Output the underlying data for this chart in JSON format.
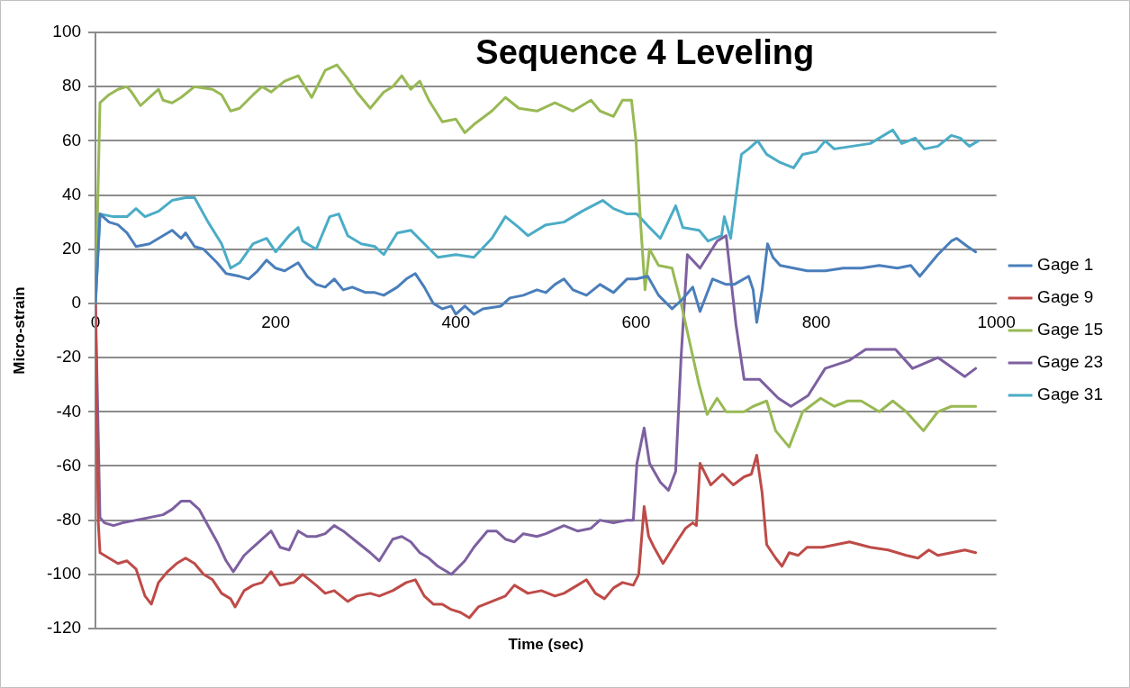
{
  "chart_data": {
    "type": "line",
    "title": "Sequence 4 Leveling",
    "xlabel": "Time (sec)",
    "ylabel": "Micro-strain",
    "xlim": [
      0,
      1000
    ],
    "xticks": [
      0,
      200,
      400,
      600,
      800,
      1000
    ],
    "ylim": [
      -120,
      100
    ],
    "yticks": [
      -120,
      -100,
      -80,
      -60,
      -40,
      -20,
      0,
      20,
      40,
      60,
      80,
      100
    ],
    "grid": "y",
    "legend": "right",
    "marker": "none",
    "line_style": "solid",
    "series": [
      {
        "name": "Gage 1",
        "color": "#4a7ebb",
        "x": [
          0,
          5,
          15,
          25,
          35,
          45,
          60,
          75,
          85,
          95,
          100,
          110,
          120,
          135,
          145,
          160,
          170,
          180,
          190,
          200,
          210,
          225,
          235,
          245,
          255,
          265,
          275,
          285,
          300,
          310,
          320,
          335,
          345,
          355,
          365,
          375,
          385,
          395,
          400,
          410,
          420,
          430,
          450,
          460,
          475,
          490,
          500,
          510,
          520,
          530,
          545,
          560,
          575,
          590,
          600,
          613,
          625,
          640,
          650,
          663,
          671,
          685,
          700,
          709,
          725,
          730,
          734,
          740,
          746,
          752,
          760,
          775,
          790,
          810,
          830,
          850,
          870,
          890,
          905,
          915,
          935,
          950,
          956,
          968,
          977
        ],
        "values": [
          0,
          33,
          30,
          29,
          26,
          21,
          22,
          25,
          27,
          24,
          26,
          21,
          20,
          15,
          11,
          10,
          9,
          12,
          16,
          13,
          12,
          15,
          10,
          7,
          6,
          9,
          5,
          6,
          4,
          4,
          3,
          6,
          9,
          11,
          6,
          0,
          -2,
          -1,
          -4,
          -1,
          -4,
          -2,
          -1,
          2,
          3,
          5,
          4,
          7,
          9,
          5,
          3,
          7,
          4,
          9,
          9,
          10,
          3,
          -2,
          1,
          6,
          -3,
          9,
          7,
          7,
          10,
          5,
          -7,
          5,
          22,
          17,
          14,
          13,
          12,
          12,
          13,
          13,
          14,
          13,
          14,
          10,
          18,
          23,
          24,
          21,
          19
        ]
      },
      {
        "name": "Gage 9",
        "color": "#be4b48",
        "x": [
          0,
          3,
          5,
          15,
          25,
          35,
          45,
          55,
          62,
          70,
          80,
          90,
          100,
          110,
          120,
          130,
          140,
          150,
          155,
          165,
          175,
          185,
          195,
          205,
          220,
          230,
          245,
          255,
          265,
          280,
          290,
          305,
          315,
          330,
          345,
          355,
          365,
          375,
          385,
          395,
          405,
          415,
          425,
          440,
          455,
          465,
          480,
          495,
          510,
          520,
          535,
          545,
          555,
          565,
          575,
          585,
          597,
          603,
          609,
          614,
          620,
          630,
          645,
          655,
          663,
          667,
          671,
          683,
          696,
          708,
          720,
          728,
          734,
          740,
          745,
          755,
          762,
          770,
          780,
          790,
          807,
          837,
          860,
          880,
          900,
          913,
          925,
          935,
          950,
          965,
          977
        ],
        "values": [
          0,
          -80,
          -92,
          -94,
          -96,
          -95,
          -98,
          -108,
          -111,
          -103,
          -99,
          -96,
          -94,
          -96,
          -100,
          -102,
          -107,
          -109,
          -112,
          -106,
          -104,
          -103,
          -99,
          -104,
          -103,
          -100,
          -104,
          -107,
          -106,
          -110,
          -108,
          -107,
          -108,
          -106,
          -103,
          -102,
          -108,
          -111,
          -111,
          -113,
          -114,
          -116,
          -112,
          -110,
          -108,
          -104,
          -107,
          -106,
          -108,
          -107,
          -104,
          -102,
          -107,
          -109,
          -105,
          -103,
          -104,
          -100,
          -75,
          -86,
          -90,
          -96,
          -88,
          -83,
          -81,
          -82,
          -59,
          -67,
          -63,
          -67,
          -64,
          -63,
          -56,
          -70,
          -89,
          -94,
          -97,
          -92,
          -93,
          -90,
          -90,
          -88,
          -90,
          -91,
          -93,
          -94,
          -91,
          -93,
          -92,
          -91,
          -92
        ]
      },
      {
        "name": "Gage 15",
        "color": "#98b954",
        "x": [
          0,
          5,
          15,
          25,
          35,
          40,
          50,
          60,
          70,
          75,
          85,
          95,
          110,
          130,
          140,
          150,
          160,
          175,
          185,
          195,
          210,
          225,
          240,
          255,
          268,
          280,
          290,
          305,
          320,
          330,
          340,
          350,
          360,
          370,
          385,
          400,
          410,
          420,
          440,
          455,
          470,
          490,
          510,
          530,
          550,
          560,
          575,
          585,
          595,
          600,
          605,
          610,
          615,
          625,
          640,
          650,
          660,
          670,
          679,
          690,
          700,
          720,
          730,
          745,
          755,
          770,
          785,
          805,
          820,
          835,
          850,
          870,
          885,
          900,
          919,
          935,
          950,
          965,
          977
        ],
        "values": [
          0,
          74,
          77,
          79,
          80,
          78,
          73,
          76,
          79,
          75,
          74,
          76,
          80,
          79,
          77,
          71,
          72,
          77,
          80,
          78,
          82,
          84,
          76,
          86,
          88,
          83,
          78,
          72,
          78,
          80,
          84,
          79,
          82,
          75,
          67,
          68,
          63,
          66,
          71,
          76,
          72,
          71,
          74,
          71,
          75,
          71,
          69,
          75,
          75,
          60,
          30,
          5,
          20,
          14,
          13,
          0,
          -15,
          -30,
          -41,
          -35,
          -40,
          -40,
          -38,
          -36,
          -47,
          -53,
          -40,
          -35,
          -38,
          -36,
          -36,
          -40,
          -36,
          -40,
          -47,
          -40,
          -38,
          -38,
          -38
        ]
      },
      {
        "name": "Gage 23",
        "color": "#7d60a0",
        "x": [
          0,
          5,
          10,
          20,
          30,
          45,
          60,
          75,
          85,
          95,
          105,
          115,
          125,
          135,
          145,
          153,
          165,
          175,
          185,
          195,
          205,
          215,
          225,
          235,
          245,
          255,
          265,
          275,
          290,
          305,
          315,
          330,
          340,
          350,
          360,
          370,
          380,
          395,
          410,
          420,
          435,
          445,
          455,
          465,
          475,
          490,
          500,
          520,
          535,
          550,
          560,
          575,
          590,
          597,
          601,
          609,
          615,
          627,
          636,
          644,
          650,
          657,
          671,
          690,
          700,
          711,
          720,
          737,
          758,
          772,
          791,
          810,
          837,
          855,
          888,
          907,
          935,
          965,
          977
        ],
        "values": [
          0,
          -79,
          -81,
          -82,
          -81,
          -80,
          -79,
          -78,
          -76,
          -73,
          -73,
          -76,
          -82,
          -88,
          -95,
          -99,
          -93,
          -90,
          -87,
          -84,
          -90,
          -91,
          -84,
          -86,
          -86,
          -85,
          -82,
          -84,
          -88,
          -92,
          -95,
          -87,
          -86,
          -88,
          -92,
          -94,
          -97,
          -100,
          -95,
          -90,
          -84,
          -84,
          -87,
          -88,
          -85,
          -86,
          -85,
          -82,
          -84,
          -83,
          -80,
          -81,
          -80,
          -80,
          -59,
          -46,
          -59,
          -66,
          -69,
          -62,
          -20,
          18,
          13,
          23,
          25,
          -8,
          -28,
          -28,
          -35,
          -38,
          -34,
          -24,
          -21,
          -17,
          -17,
          -24,
          -20,
          -27,
          -24
        ]
      },
      {
        "name": "Gage 31",
        "color": "#4bacc6",
        "x": [
          0,
          5,
          20,
          35,
          45,
          55,
          70,
          85,
          100,
          110,
          125,
          140,
          150,
          160,
          175,
          190,
          200,
          215,
          225,
          230,
          245,
          260,
          270,
          280,
          295,
          310,
          320,
          335,
          350,
          365,
          380,
          400,
          420,
          440,
          455,
          470,
          480,
          500,
          520,
          540,
          563,
          575,
          590,
          601,
          615,
          627,
          644,
          652,
          670,
          680,
          695,
          698,
          705,
          717,
          725,
          735,
          745,
          760,
          775,
          785,
          800,
          810,
          820,
          840,
          860,
          870,
          885,
          895,
          910,
          920,
          935,
          950,
          960,
          970,
          980
        ],
        "values": [
          0,
          33,
          32,
          32,
          35,
          32,
          34,
          38,
          39,
          39,
          30,
          22,
          13,
          15,
          22,
          24,
          19,
          25,
          28,
          23,
          20,
          32,
          33,
          25,
          22,
          21,
          18,
          26,
          27,
          22,
          17,
          18,
          17,
          24,
          32,
          28,
          25,
          29,
          30,
          34,
          38,
          35,
          33,
          33,
          28,
          24,
          36,
          28,
          27,
          23,
          25,
          32,
          24,
          55,
          57,
          60,
          55,
          52,
          50,
          55,
          56,
          60,
          57,
          58,
          59,
          61,
          64,
          59,
          61,
          57,
          58,
          62,
          61,
          58,
          60
        ]
      }
    ]
  }
}
